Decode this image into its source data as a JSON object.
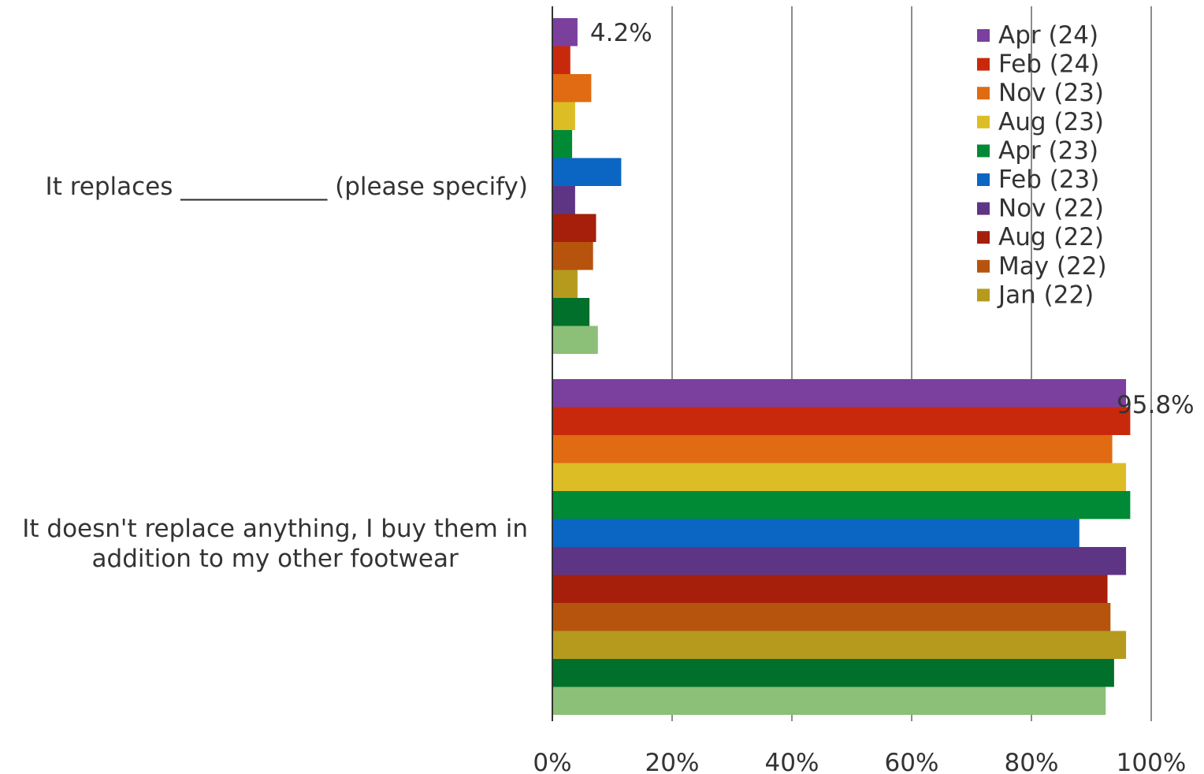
{
  "chart_data": {
    "type": "bar",
    "orientation": "horizontal",
    "categories": [
      "It replaces ____________ (please specify)",
      "It doesn't replace anything, I buy them in addition to my other footwear"
    ],
    "category_lines": [
      [
        "It replaces ____________ (please specify)"
      ],
      [
        "It doesn't replace anything, I buy them in",
        "addition to my other footwear"
      ]
    ],
    "series": [
      {
        "name": "Apr (24)",
        "color": "#7B3F9E",
        "values": [
          4.2,
          95.8
        ]
      },
      {
        "name": "Feb (24)",
        "color": "#C8290C",
        "values": [
          3.0,
          96.5
        ]
      },
      {
        "name": "Nov (23)",
        "color": "#E06B12",
        "values": [
          6.5,
          93.5
        ]
      },
      {
        "name": "Aug (23)",
        "color": "#DDBD25",
        "values": [
          3.8,
          95.8
        ]
      },
      {
        "name": "Apr (23)",
        "color": "#008A35",
        "values": [
          3.3,
          96.5
        ]
      },
      {
        "name": "Feb (23)",
        "color": "#0A66C2",
        "values": [
          11.5,
          88.0
        ]
      },
      {
        "name": "Nov (22)",
        "color": "#5E3585",
        "values": [
          3.8,
          95.8
        ]
      },
      {
        "name": "Aug (22)",
        "color": "#A51F0A",
        "values": [
          7.3,
          92.7
        ]
      },
      {
        "name": "May (22)",
        "color": "#B6540E",
        "values": [
          6.8,
          93.2
        ]
      },
      {
        "name": "Jan (22)",
        "color": "#B69A1E",
        "values": [
          4.2,
          95.8
        ]
      },
      {
        "name": "",
        "color": "#00702A",
        "values": [
          6.2,
          93.8
        ]
      },
      {
        "name": "",
        "color": "#8CBF78",
        "values": [
          7.6,
          92.4
        ]
      }
    ],
    "data_labels": [
      {
        "series": 0,
        "category": 0,
        "text": "4.2%"
      },
      {
        "series": 0,
        "category": 1,
        "text": "95.8%"
      }
    ],
    "x_ticks": [
      "0%",
      "20%",
      "40%",
      "60%",
      "80%",
      "100%"
    ],
    "xlim": [
      0,
      100
    ],
    "grid": true,
    "legend_position": "top-right",
    "title": "",
    "xlabel": "",
    "ylabel": ""
  }
}
